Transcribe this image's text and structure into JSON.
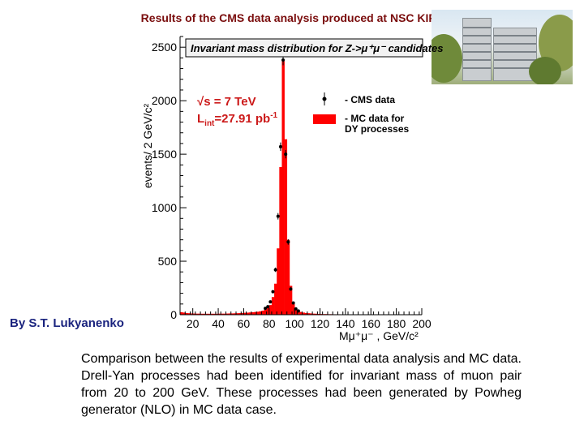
{
  "slide": {
    "title": "Results of the CMS data analysis produced at NSC KIPT",
    "author": "By S.T. Lukyanenko",
    "caption": "Comparison between the results of experimental data analysis and MC data. Drell-Yan processes had been identified for invariant mass of muon pair from 20 to 200 GeV. These processes had been generated by Powheg generator (NLO) in MC data case."
  },
  "colors": {
    "mc_fill": "#ff0000",
    "data_marker": "#000000",
    "title_text": "#7a0d0d",
    "author_text": "#1a237e"
  },
  "chart_data": {
    "type": "bar",
    "title": "Invariant mass distribution for Z->μ⁺μ⁻ candidates",
    "xlabel": "Mμ⁺μ⁻ , GeV/c²",
    "ylabel": "events/ 2 GeV/c²",
    "xlim": [
      10,
      200
    ],
    "ylim": [
      0,
      2600
    ],
    "xticks": [
      "20",
      "40",
      "60",
      "80",
      "100",
      "120",
      "140",
      "160",
      "180",
      "200"
    ],
    "yticks": [
      "0",
      "500",
      "1000",
      "1500",
      "2000",
      "2500"
    ],
    "annotation": {
      "energy": "√s = 7 TeV",
      "lumi_prefix": "L",
      "lumi_sub": "int",
      "lumi_value": "=27.91 pb",
      "lumi_sup": "-1"
    },
    "legend": {
      "position": "top-right",
      "entries": [
        "- CMS data",
        "- MC data for",
        "DY processes"
      ]
    },
    "bin_width": 2,
    "mc_bins": [
      {
        "x": 10,
        "y": 24
      },
      {
        "x": 12,
        "y": 20
      },
      {
        "x": 14,
        "y": 16
      },
      {
        "x": 16,
        "y": 14
      },
      {
        "x": 18,
        "y": 12
      },
      {
        "x": 20,
        "y": 11
      },
      {
        "x": 22,
        "y": 10
      },
      {
        "x": 24,
        "y": 10
      },
      {
        "x": 26,
        "y": 9
      },
      {
        "x": 28,
        "y": 9
      },
      {
        "x": 30,
        "y": 9
      },
      {
        "x": 32,
        "y": 9
      },
      {
        "x": 34,
        "y": 9
      },
      {
        "x": 36,
        "y": 9
      },
      {
        "x": 38,
        "y": 9
      },
      {
        "x": 40,
        "y": 10
      },
      {
        "x": 42,
        "y": 10
      },
      {
        "x": 44,
        "y": 10
      },
      {
        "x": 46,
        "y": 11
      },
      {
        "x": 48,
        "y": 12
      },
      {
        "x": 50,
        "y": 12
      },
      {
        "x": 52,
        "y": 13
      },
      {
        "x": 54,
        "y": 14
      },
      {
        "x": 56,
        "y": 15
      },
      {
        "x": 58,
        "y": 16
      },
      {
        "x": 60,
        "y": 18
      },
      {
        "x": 62,
        "y": 19
      },
      {
        "x": 64,
        "y": 21
      },
      {
        "x": 66,
        "y": 23
      },
      {
        "x": 68,
        "y": 25
      },
      {
        "x": 70,
        "y": 28
      },
      {
        "x": 72,
        "y": 32
      },
      {
        "x": 74,
        "y": 38
      },
      {
        "x": 76,
        "y": 48
      },
      {
        "x": 78,
        "y": 62
      },
      {
        "x": 80,
        "y": 90
      },
      {
        "x": 82,
        "y": 165
      },
      {
        "x": 84,
        "y": 290
      },
      {
        "x": 86,
        "y": 620
      },
      {
        "x": 88,
        "y": 1380
      },
      {
        "x": 90,
        "y": 2370
      },
      {
        "x": 92,
        "y": 1640
      },
      {
        "x": 94,
        "y": 700
      },
      {
        "x": 96,
        "y": 270
      },
      {
        "x": 98,
        "y": 120
      },
      {
        "x": 100,
        "y": 60
      },
      {
        "x": 102,
        "y": 36
      },
      {
        "x": 104,
        "y": 26
      },
      {
        "x": 106,
        "y": 20
      },
      {
        "x": 108,
        "y": 16
      },
      {
        "x": 110,
        "y": 14
      },
      {
        "x": 112,
        "y": 12
      },
      {
        "x": 114,
        "y": 10
      },
      {
        "x": 116,
        "y": 9
      },
      {
        "x": 118,
        "y": 8
      },
      {
        "x": 120,
        "y": 7
      },
      {
        "x": 122,
        "y": 6
      },
      {
        "x": 124,
        "y": 6
      },
      {
        "x": 126,
        "y": 5
      },
      {
        "x": 128,
        "y": 5
      },
      {
        "x": 130,
        "y": 4
      },
      {
        "x": 132,
        "y": 4
      },
      {
        "x": 134,
        "y": 4
      },
      {
        "x": 136,
        "y": 3
      },
      {
        "x": 138,
        "y": 3
      },
      {
        "x": 140,
        "y": 3
      },
      {
        "x": 142,
        "y": 3
      },
      {
        "x": 144,
        "y": 2
      },
      {
        "x": 146,
        "y": 2
      },
      {
        "x": 148,
        "y": 2
      },
      {
        "x": 150,
        "y": 2
      },
      {
        "x": 152,
        "y": 2
      },
      {
        "x": 154,
        "y": 2
      },
      {
        "x": 156,
        "y": 2
      },
      {
        "x": 158,
        "y": 1
      },
      {
        "x": 160,
        "y": 1
      },
      {
        "x": 162,
        "y": 1
      },
      {
        "x": 164,
        "y": 1
      },
      {
        "x": 166,
        "y": 1
      },
      {
        "x": 168,
        "y": 1
      },
      {
        "x": 170,
        "y": 1
      },
      {
        "x": 172,
        "y": 1
      },
      {
        "x": 174,
        "y": 1
      },
      {
        "x": 176,
        "y": 1
      },
      {
        "x": 178,
        "y": 1
      },
      {
        "x": 180,
        "y": 1
      },
      {
        "x": 182,
        "y": 1
      },
      {
        "x": 184,
        "y": 1
      },
      {
        "x": 186,
        "y": 1
      },
      {
        "x": 188,
        "y": 1
      },
      {
        "x": 190,
        "y": 1
      },
      {
        "x": 192,
        "y": 1
      },
      {
        "x": 194,
        "y": 1
      },
      {
        "x": 196,
        "y": 1
      },
      {
        "x": 198,
        "y": 1
      }
    ],
    "data_points": [
      {
        "x": 77,
        "y": 60
      },
      {
        "x": 79,
        "y": 75
      },
      {
        "x": 81,
        "y": 120
      },
      {
        "x": 83,
        "y": 215
      },
      {
        "x": 85,
        "y": 420
      },
      {
        "x": 87,
        "y": 920
      },
      {
        "x": 89,
        "y": 1570
      },
      {
        "x": 91,
        "y": 2380
      },
      {
        "x": 93,
        "y": 1500
      },
      {
        "x": 95,
        "y": 680
      },
      {
        "x": 97,
        "y": 240
      },
      {
        "x": 99,
        "y": 110
      },
      {
        "x": 101,
        "y": 55
      },
      {
        "x": 103,
        "y": 35
      }
    ]
  }
}
